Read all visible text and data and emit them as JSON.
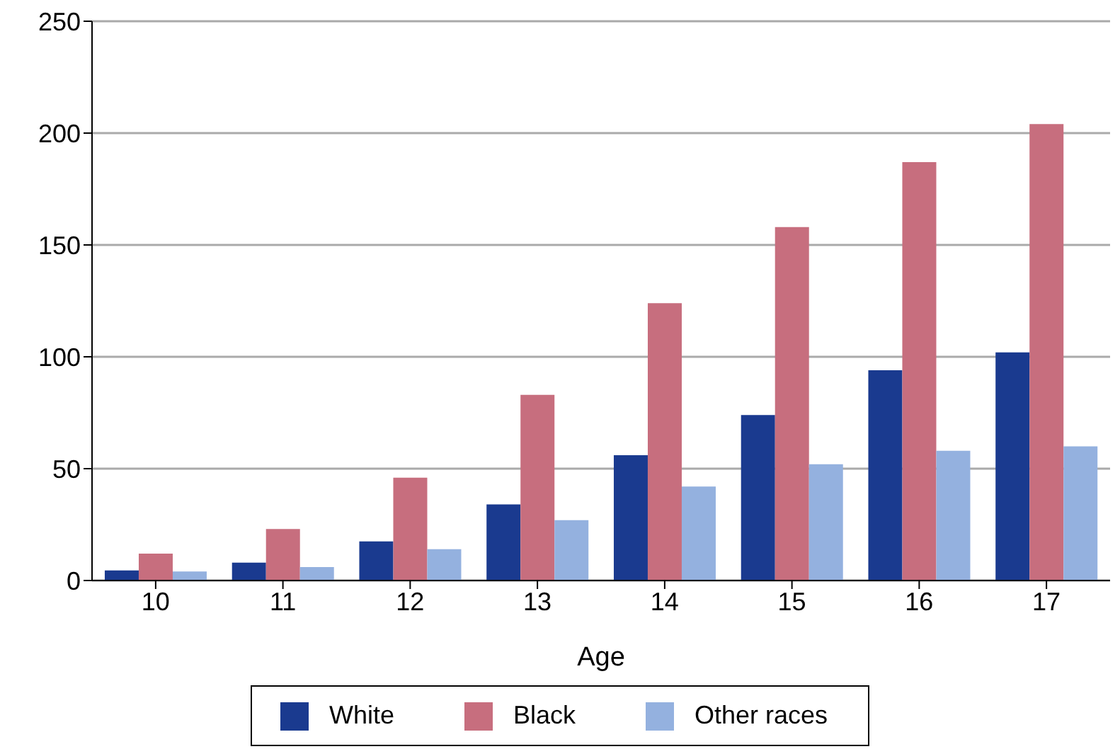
{
  "chart_data": {
    "type": "bar",
    "xlabel": "Age",
    "categories": [
      "10",
      "11",
      "12",
      "13",
      "14",
      "15",
      "16",
      "17"
    ],
    "series": [
      {
        "name": "White",
        "color": "#1a3a8f",
        "values": [
          4.5,
          8,
          17.5,
          34,
          56,
          74,
          94,
          102
        ]
      },
      {
        "name": "Black",
        "color": "#c76e7e",
        "values": [
          12,
          23,
          46,
          83,
          124,
          158,
          187,
          204
        ]
      },
      {
        "name": "Other races",
        "color": "#94b1df",
        "values": [
          4,
          6,
          14,
          27,
          42,
          52,
          58,
          60
        ]
      }
    ],
    "ylim": [
      0,
      250
    ],
    "yticks": [
      0,
      50,
      100,
      150,
      200,
      250
    ],
    "grid": "y",
    "legend": "bottom"
  }
}
